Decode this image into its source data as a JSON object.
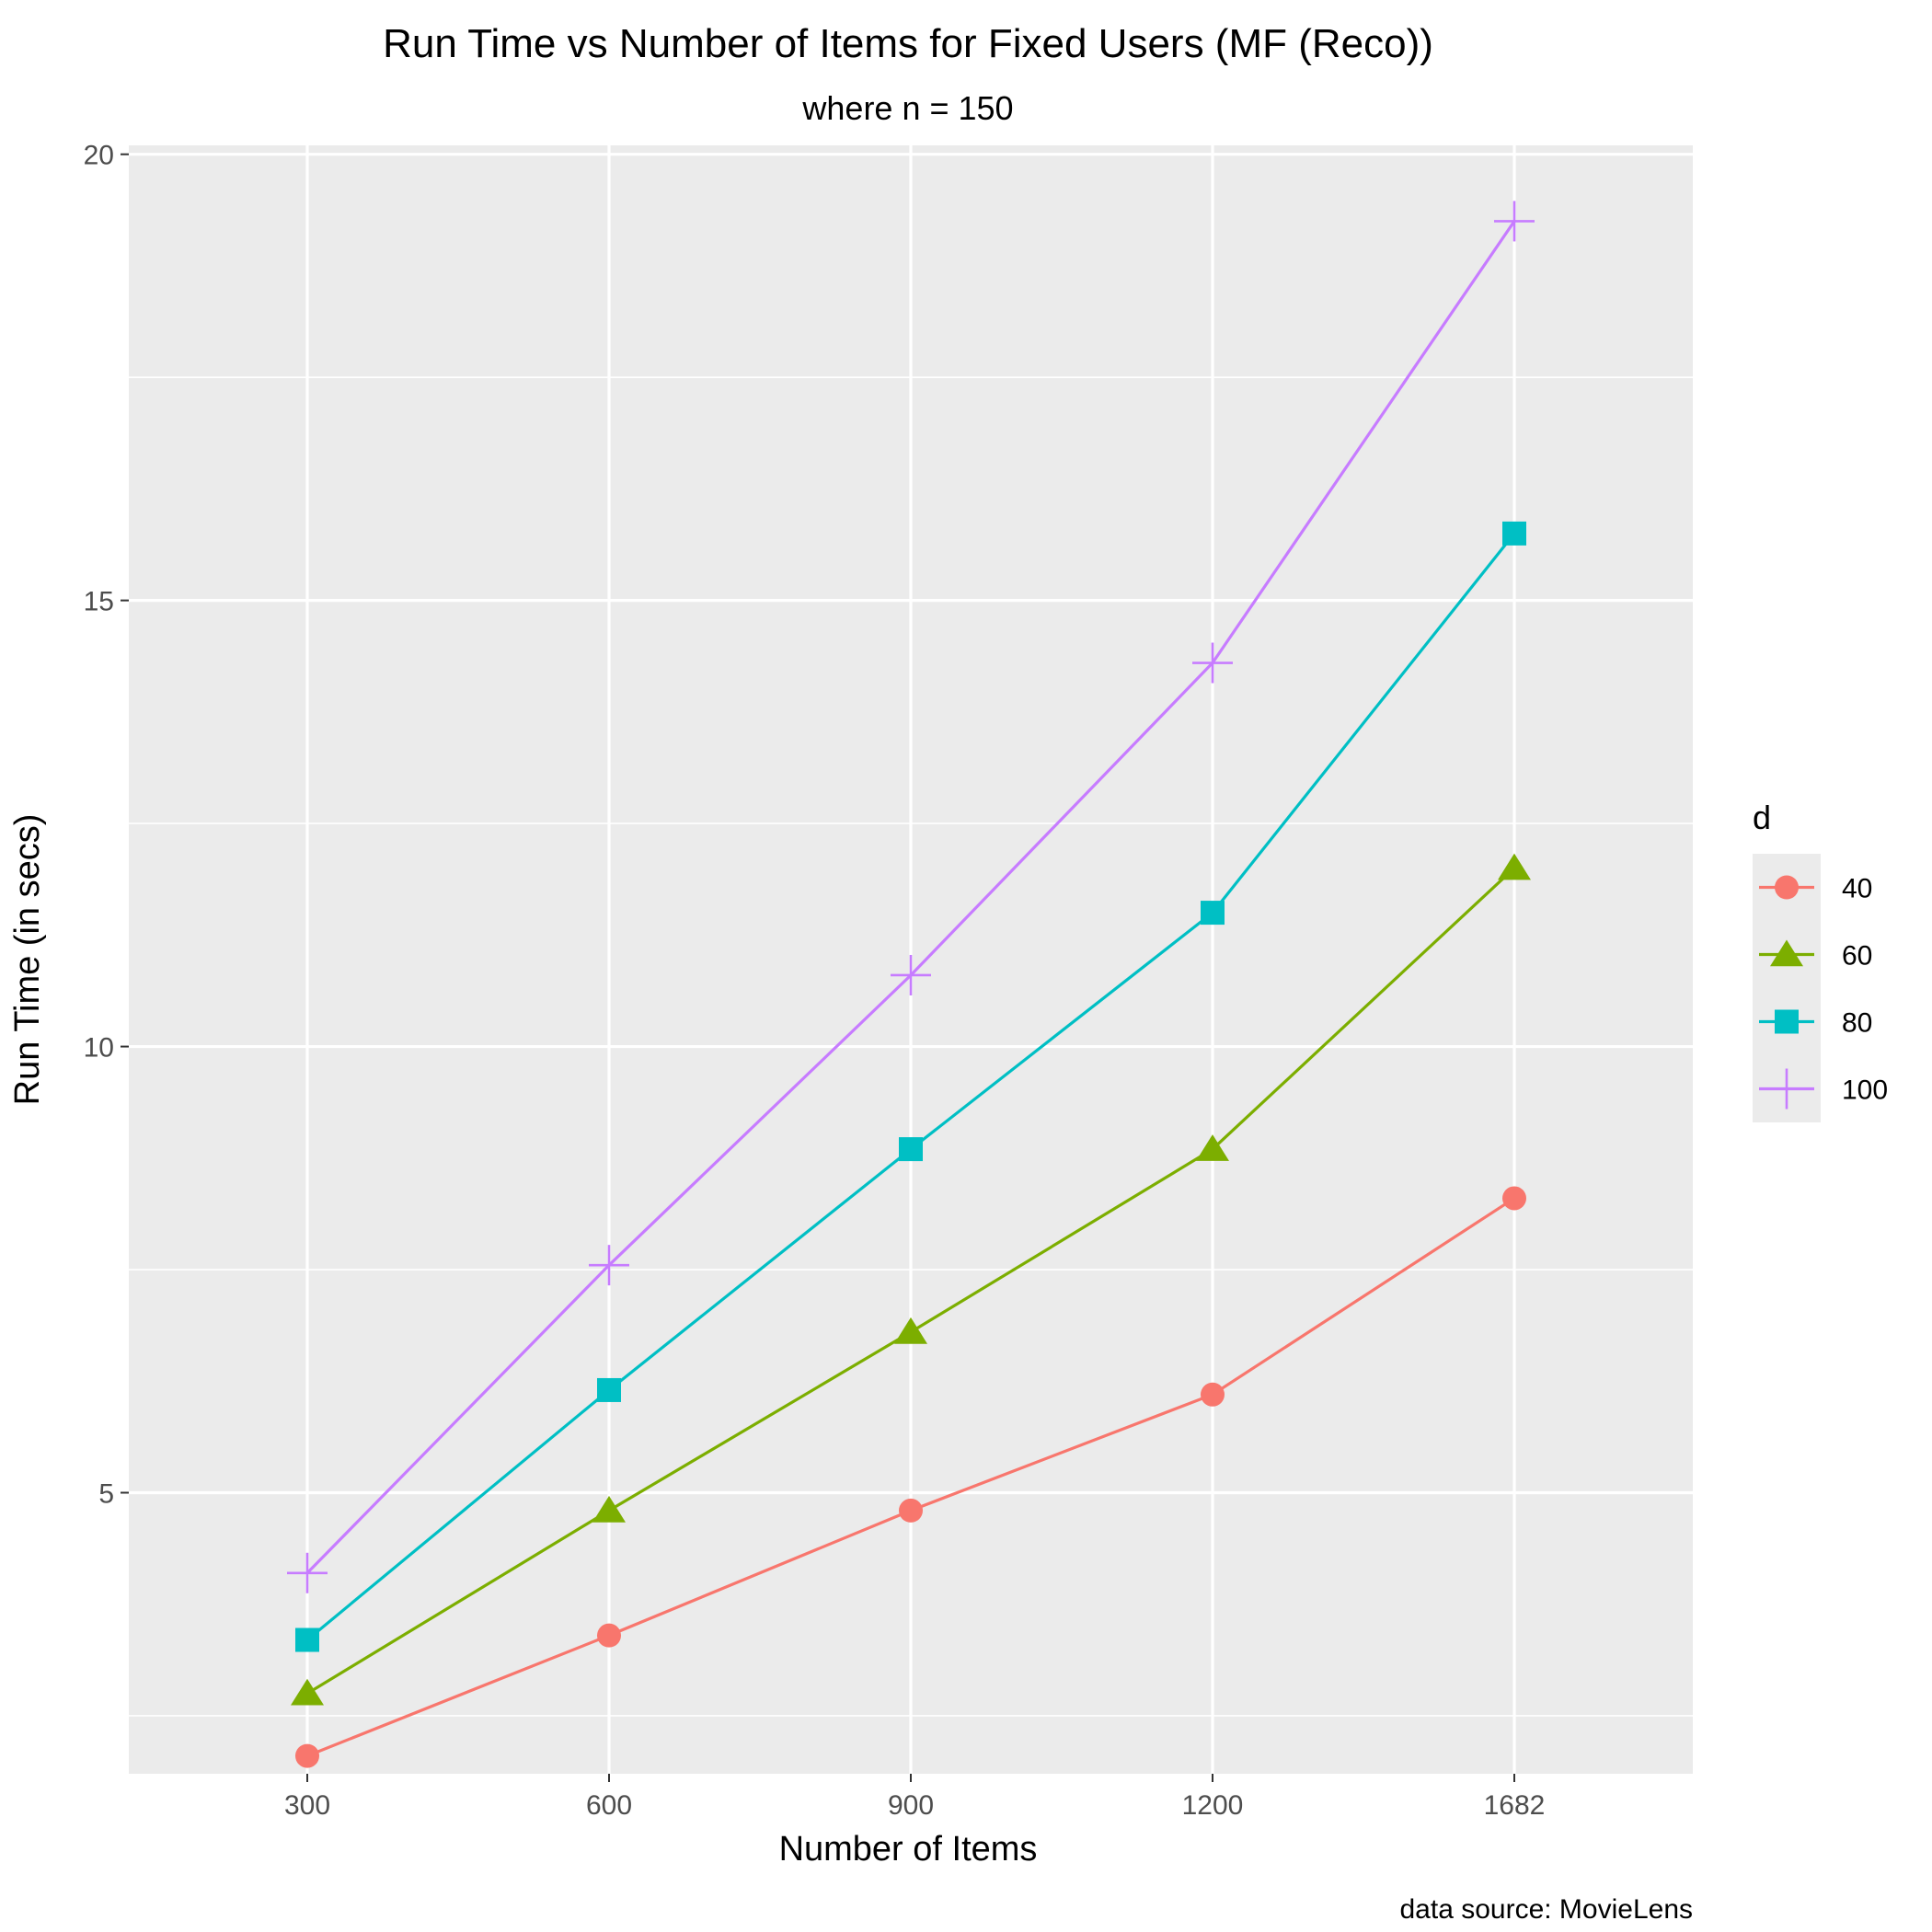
{
  "chart_data": {
    "type": "line",
    "title": "Run Time vs Number of Items for Fixed Users (MF (Reco))",
    "subtitle": "where n = 150",
    "xlabel": "Number of Items",
    "ylabel": "Run Time (in secs)",
    "caption": "data source: MovieLens",
    "categories": [
      "300",
      "600",
      "900",
      "1200",
      "1682"
    ],
    "y_ticks": [
      "5",
      "10",
      "15",
      "20"
    ],
    "ylim": [
      1.85,
      20.1
    ],
    "grid": true,
    "legend": {
      "title": "d",
      "position": "right"
    },
    "series": [
      {
        "name": "40",
        "shape": "circle",
        "color": "#F8766D",
        "values": [
          2.05,
          3.4,
          4.8,
          6.1,
          8.3
        ]
      },
      {
        "name": "60",
        "shape": "triangle",
        "color": "#7CAE00",
        "values": [
          2.75,
          4.8,
          6.8,
          8.85,
          12.0
        ]
      },
      {
        "name": "80",
        "shape": "square",
        "color": "#00BFC4",
        "values": [
          3.35,
          6.15,
          8.85,
          11.5,
          15.75
        ]
      },
      {
        "name": "100",
        "shape": "plus",
        "color": "#C77CFF",
        "values": [
          4.1,
          7.55,
          10.8,
          14.3,
          19.25
        ]
      }
    ]
  }
}
